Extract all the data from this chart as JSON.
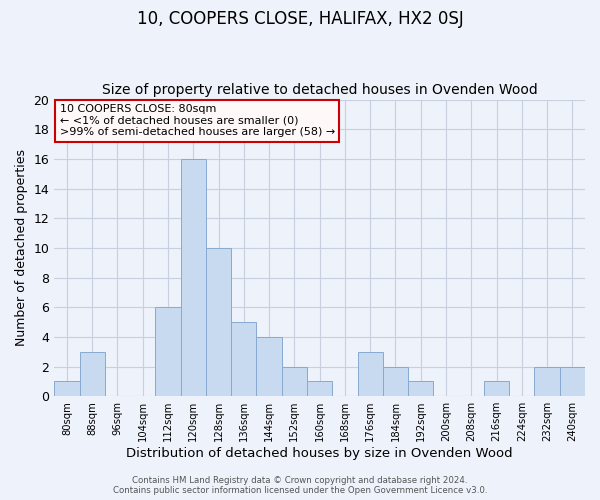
{
  "title": "10, COOPERS CLOSE, HALIFAX, HX2 0SJ",
  "subtitle": "Size of property relative to detached houses in Ovenden Wood",
  "xlabel": "Distribution of detached houses by size in Ovenden Wood",
  "ylabel": "Number of detached properties",
  "bin_labels": [
    "80sqm",
    "88sqm",
    "96sqm",
    "104sqm",
    "112sqm",
    "120sqm",
    "128sqm",
    "136sqm",
    "144sqm",
    "152sqm",
    "160sqm",
    "168sqm",
    "176sqm",
    "184sqm",
    "192sqm",
    "200sqm",
    "208sqm",
    "216sqm",
    "224sqm",
    "232sqm",
    "240sqm"
  ],
  "bar_values": [
    1,
    3,
    0,
    0,
    6,
    16,
    10,
    5,
    4,
    2,
    1,
    0,
    3,
    2,
    1,
    0,
    0,
    1,
    0,
    2,
    2
  ],
  "bar_color": "#c8daf0",
  "bar_edge_color": "#88aad0",
  "ylim": [
    0,
    20
  ],
  "yticks": [
    0,
    2,
    4,
    6,
    8,
    10,
    12,
    14,
    16,
    18,
    20
  ],
  "annotation_box_text_line1": "10 COOPERS CLOSE: 80sqm",
  "annotation_box_text_line2": "← <1% of detached houses are smaller (0)",
  "annotation_box_text_line3": ">99% of semi-detached houses are larger (58) →",
  "annotation_box_color": "#fff8f8",
  "annotation_box_edge_color": "#cc0000",
  "footer_line1": "Contains HM Land Registry data © Crown copyright and database right 2024.",
  "footer_line2": "Contains public sector information licensed under the Open Government Licence v3.0.",
  "bg_color": "#eef2fa",
  "grid_color": "#c8d0e0",
  "title_fontsize": 12,
  "subtitle_fontsize": 10,
  "xlabel_fontsize": 9.5,
  "ylabel_fontsize": 9
}
